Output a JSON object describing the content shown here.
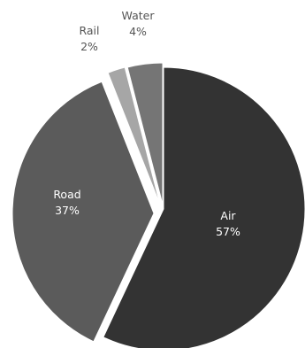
{
  "chart_data": {
    "type": "pie",
    "title": "",
    "legend": "none",
    "slices": [
      {
        "label": "Air",
        "value": 57,
        "percent_label": "57%",
        "color": "#333333",
        "label_color": "#ffffff",
        "exploded": false
      },
      {
        "label": "Road",
        "value": 37,
        "percent_label": "37%",
        "color": "#5b5b5b",
        "label_color": "#ffffff",
        "exploded": true
      },
      {
        "label": "Rail",
        "value": 2,
        "percent_label": "2%",
        "color": "#a6a6a6",
        "label_color": "#555555",
        "exploded": true
      },
      {
        "label": "Water",
        "value": 4,
        "percent_label": "4%",
        "color": "#757575",
        "label_color": "#555555",
        "exploded": true
      }
    ]
  }
}
